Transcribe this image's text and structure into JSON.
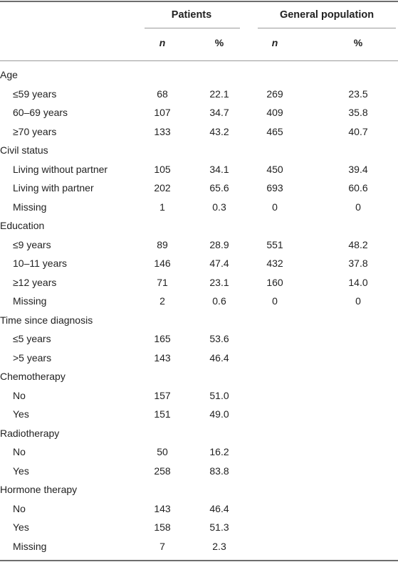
{
  "header": {
    "patients": "Patients",
    "general_population": "General population",
    "n": "n",
    "pct": "%"
  },
  "rows": [
    {
      "label": "Age",
      "type": "category"
    },
    {
      "label": "≤59 years",
      "type": "item",
      "pn": "68",
      "pp": "22.1",
      "gn": "269",
      "gp": "23.5"
    },
    {
      "label": "60–69 years",
      "type": "item",
      "pn": "107",
      "pp": "34.7",
      "gn": "409",
      "gp": "35.8"
    },
    {
      "label": "≥70 years",
      "type": "item",
      "pn": "133",
      "pp": "43.2",
      "gn": "465",
      "gp": "40.7"
    },
    {
      "label": "Civil status",
      "type": "category"
    },
    {
      "label": "Living without partner",
      "type": "item",
      "pn": "105",
      "pp": "34.1",
      "gn": "450",
      "gp": "39.4"
    },
    {
      "label": "Living with partner",
      "type": "item",
      "pn": "202",
      "pp": "65.6",
      "gn": "693",
      "gp": "60.6"
    },
    {
      "label": "Missing",
      "type": "item",
      "pn": "1",
      "pp": "0.3",
      "gn": "0",
      "gp": "0"
    },
    {
      "label": "Education",
      "type": "category"
    },
    {
      "label": "≤9 years",
      "type": "item",
      "pn": "89",
      "pp": "28.9",
      "gn": "551",
      "gp": "48.2"
    },
    {
      "label": "10–11 years",
      "type": "item",
      "pn": "146",
      "pp": "47.4",
      "gn": "432",
      "gp": "37.8"
    },
    {
      "label": "≥12 years",
      "type": "item",
      "pn": "71",
      "pp": "23.1",
      "gn": "160",
      "gp": "14.0"
    },
    {
      "label": "Missing",
      "type": "item",
      "pn": "2",
      "pp": "0.6",
      "gn": "0",
      "gp": "0"
    },
    {
      "label": "Time since diagnosis",
      "type": "category"
    },
    {
      "label": "≤5 years",
      "type": "item",
      "pn": "165",
      "pp": "53.6",
      "gn": "",
      "gp": ""
    },
    {
      "label": ">5 years",
      "type": "item",
      "pn": "143",
      "pp": "46.4",
      "gn": "",
      "gp": ""
    },
    {
      "label": "Chemotherapy",
      "type": "category"
    },
    {
      "label": "No",
      "type": "item",
      "pn": "157",
      "pp": "51.0",
      "gn": "",
      "gp": ""
    },
    {
      "label": "Yes",
      "type": "item",
      "pn": "151",
      "pp": "49.0",
      "gn": "",
      "gp": ""
    },
    {
      "label": "Radiotherapy",
      "type": "category"
    },
    {
      "label": "No",
      "type": "item",
      "pn": "50",
      "pp": "16.2",
      "gn": "",
      "gp": ""
    },
    {
      "label": "Yes",
      "type": "item",
      "pn": "258",
      "pp": "83.8",
      "gn": "",
      "gp": ""
    },
    {
      "label": "Hormone therapy",
      "type": "category"
    },
    {
      "label": "No",
      "type": "item",
      "pn": "143",
      "pp": "46.4",
      "gn": "",
      "gp": ""
    },
    {
      "label": "Yes",
      "type": "item",
      "pn": "158",
      "pp": "51.3",
      "gn": "",
      "gp": ""
    },
    {
      "label": "Missing",
      "type": "item",
      "pn": "7",
      "pp": "2.3",
      "gn": "",
      "gp": ""
    }
  ]
}
